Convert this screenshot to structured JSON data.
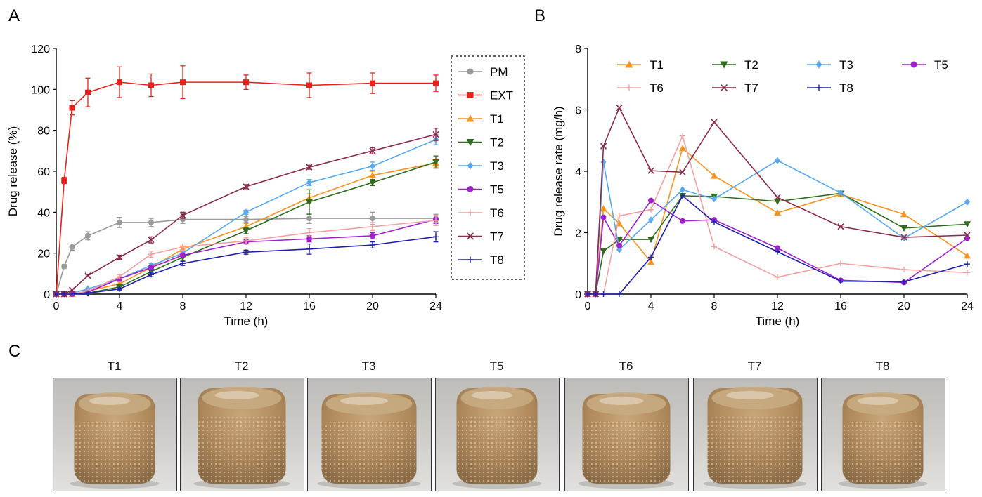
{
  "panels": [
    {
      "letter": "A",
      "chart_data": {
        "type": "line",
        "xlabel": "Time (h)",
        "ylabel": "Drug release (%)",
        "xlim": [
          0,
          24
        ],
        "ylim": [
          0,
          120
        ],
        "xticks": [
          0,
          4,
          8,
          12,
          16,
          20,
          24
        ],
        "yticks": [
          0,
          20,
          40,
          60,
          80,
          100,
          120
        ],
        "grid": false,
        "legend_position": "right, outside, dashed box",
        "series": [
          {
            "name": "PM",
            "color": "#9a9a9a",
            "marker": "circle",
            "x": [
              0,
              0.5,
              1,
              2,
              4,
              6,
              8,
              12,
              16,
              20,
              24
            ],
            "y": [
              0,
              13.5,
              23,
              28.5,
              35,
              35,
              36.5,
              36.5,
              37,
              37,
              37
            ],
            "err": [
              0,
              1,
              1.5,
              2,
              2.5,
              2,
              2,
              1.5,
              2.5,
              3,
              2
            ]
          },
          {
            "name": "EXT",
            "color": "#e8201c",
            "marker": "square",
            "x": [
              0,
              0.5,
              1,
              2,
              4,
              6,
              8,
              12,
              16,
              20,
              24
            ],
            "y": [
              0,
              55.5,
              91,
              98.5,
              103.5,
              102,
              103.5,
              103.5,
              102,
              103,
              103
            ],
            "err": [
              0,
              1.5,
              3.5,
              7,
              7.5,
              5.5,
              8,
              3.5,
              6,
              5,
              4
            ]
          },
          {
            "name": "T1",
            "color": "#f7931e",
            "marker": "triangle",
            "x": [
              0,
              0.5,
              1,
              2,
              4,
              6,
              8,
              12,
              16,
              20,
              24
            ],
            "y": [
              0,
              0,
              0,
              1.5,
              5,
              13,
              22,
              33,
              47,
              58,
              64
            ],
            "err": [
              0,
              0,
              0,
              0.5,
              1,
              1,
              1.5,
              1.5,
              2,
              2,
              2
            ]
          },
          {
            "name": "T2",
            "color": "#2e6d1e",
            "marker": "triangle-down",
            "x": [
              0,
              0.5,
              1,
              2,
              4,
              6,
              8,
              12,
              16,
              20,
              24
            ],
            "y": [
              0,
              0,
              0,
              0.5,
              3.5,
              11,
              18,
              31,
              45,
              54.5,
              64.5
            ],
            "err": [
              0,
              0,
              0,
              0.5,
              1,
              1,
              1.5,
              1.5,
              6,
              1.5,
              3
            ]
          },
          {
            "name": "T3",
            "color": "#58a9f0",
            "marker": "diamond",
            "x": [
              0,
              0.5,
              1,
              2,
              4,
              6,
              8,
              12,
              16,
              20,
              24
            ],
            "y": [
              0,
              0,
              0.5,
              2.5,
              7.5,
              14,
              20,
              40,
              54.5,
              62.5,
              75.5
            ],
            "err": [
              0,
              0,
              0,
              0.5,
              1,
              1,
              1.5,
              1,
              1.5,
              2,
              2.5
            ]
          },
          {
            "name": "T5",
            "color": "#a020d0",
            "marker": "circle",
            "x": [
              0,
              0.5,
              1,
              2,
              4,
              6,
              8,
              12,
              16,
              20,
              24
            ],
            "y": [
              0,
              0,
              0,
              1,
              7.5,
              13,
              19,
              25.5,
              27,
              28.5,
              36.5
            ],
            "err": [
              0,
              0,
              0,
              0.5,
              1,
              1,
              1,
              1,
              1.5,
              1.5,
              2
            ]
          },
          {
            "name": "T6",
            "color": "#f4a0a0",
            "marker": "plus",
            "x": [
              0,
              0.5,
              1,
              2,
              4,
              6,
              8,
              12,
              16,
              20,
              24
            ],
            "y": [
              0,
              0,
              0,
              1.5,
              8.5,
              19.5,
              23,
              26,
              30,
              33,
              36
            ],
            "err": [
              0,
              0,
              0,
              0.5,
              1,
              1.5,
              1.5,
              1.5,
              2,
              2,
              2.5
            ]
          },
          {
            "name": "T7",
            "color": "#8b2b4a",
            "marker": "x",
            "x": [
              0,
              0.5,
              1,
              2,
              4,
              6,
              8,
              12,
              16,
              20,
              24
            ],
            "y": [
              0,
              0,
              2,
              9,
              18,
              26.5,
              38.5,
              52.5,
              62,
              70,
              78
            ],
            "err": [
              0,
              0,
              0.5,
              0.5,
              1,
              1.5,
              1.5,
              1,
              1,
              1.5,
              3
            ]
          },
          {
            "name": "T8",
            "color": "#2020b0",
            "marker": "plus",
            "x": [
              0,
              0.5,
              1,
              2,
              4,
              6,
              8,
              12,
              16,
              20,
              24
            ],
            "y": [
              0,
              0,
              0,
              0.5,
              2.5,
              9.5,
              15,
              20.5,
              22,
              24,
              28
            ],
            "err": [
              0,
              0,
              0,
              0.5,
              0.5,
              1,
              1,
              1,
              2.5,
              1.5,
              2.5
            ]
          }
        ]
      }
    },
    {
      "letter": "B",
      "chart_data": {
        "type": "line",
        "xlabel": "Time (h)",
        "ylabel": "Drug release rate  (mg/h)",
        "xlim": [
          0,
          24
        ],
        "ylim": [
          0,
          8
        ],
        "xticks": [
          0,
          4,
          8,
          12,
          16,
          20,
          24
        ],
        "yticks": [
          0,
          2,
          4,
          6,
          8
        ],
        "grid": false,
        "legend_position": "top, inside, 4 columns",
        "series": [
          {
            "name": "T1",
            "color": "#f7931e",
            "marker": "triangle",
            "x": [
              0,
              0.5,
              1,
              2,
              4,
              6,
              8,
              12,
              16,
              20,
              24
            ],
            "y": [
              0,
              0,
              2.78,
              2.3,
              1.05,
              4.75,
              3.85,
              2.65,
              3.25,
              2.6,
              1.25
            ]
          },
          {
            "name": "T2",
            "color": "#2e6d1e",
            "marker": "triangle-down",
            "x": [
              0,
              0.5,
              1,
              2,
              4,
              6,
              8,
              12,
              16,
              20,
              24
            ],
            "y": [
              0,
              0,
              1.4,
              1.78,
              1.78,
              3.2,
              3.18,
              3.02,
              3.28,
              2.15,
              2.28
            ]
          },
          {
            "name": "T3",
            "color": "#58a9f0",
            "marker": "diamond",
            "x": [
              0,
              0.5,
              1,
              2,
              4,
              6,
              8,
              12,
              16,
              20,
              24
            ],
            "y": [
              0,
              0,
              4.3,
              1.45,
              2.42,
              3.4,
              3.1,
              4.35,
              3.3,
              1.82,
              3.0
            ]
          },
          {
            "name": "T5",
            "color": "#a020d0",
            "marker": "circle",
            "x": [
              0,
              0.5,
              1,
              2,
              4,
              6,
              8,
              12,
              16,
              20,
              24
            ],
            "y": [
              0,
              0,
              2.5,
              1.58,
              3.05,
              2.38,
              2.42,
              1.5,
              0.45,
              0.38,
              1.82
            ]
          },
          {
            "name": "T6",
            "color": "#f4a0a0",
            "marker": "plus",
            "x": [
              0,
              0.5,
              1,
              2,
              4,
              6,
              8,
              12,
              16,
              20,
              24
            ],
            "y": [
              0,
              0,
              0,
              2.55,
              2.75,
              5.15,
              1.55,
              0.55,
              1.0,
              0.8,
              0.7
            ]
          },
          {
            "name": "T7",
            "color": "#8b2b4a",
            "marker": "x",
            "x": [
              0,
              0.5,
              1,
              2,
              4,
              6,
              8,
              12,
              16,
              20,
              24
            ],
            "y": [
              0,
              0,
              4.82,
              6.07,
              4.02,
              3.97,
              5.6,
              3.15,
              2.2,
              1.85,
              1.92
            ]
          },
          {
            "name": "T8",
            "color": "#2020b0",
            "marker": "plus",
            "x": [
              0,
              0.5,
              1,
              2,
              4,
              6,
              8,
              12,
              16,
              20,
              24
            ],
            "y": [
              0,
              0,
              0,
              0,
              1.2,
              3.2,
              2.35,
              1.38,
              0.42,
              0.4,
              0.98
            ]
          }
        ]
      }
    }
  ],
  "panel_c": {
    "letter": "C",
    "photos": [
      {
        "label": "T1"
      },
      {
        "label": "T2"
      },
      {
        "label": "T3"
      },
      {
        "label": "T5"
      },
      {
        "label": "T6"
      },
      {
        "label": "T7"
      },
      {
        "label": "T8"
      }
    ]
  }
}
